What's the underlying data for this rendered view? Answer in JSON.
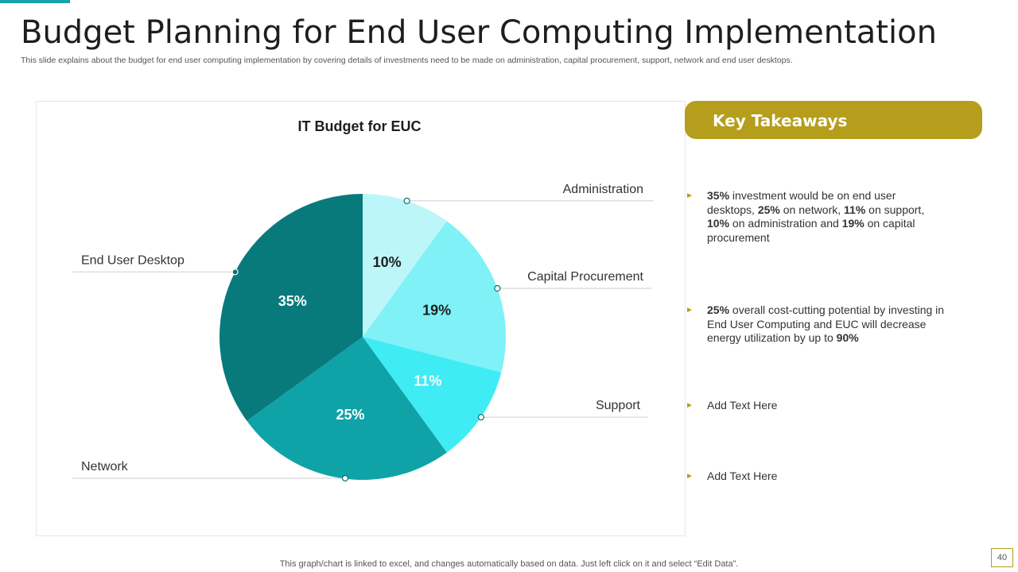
{
  "slide": {
    "title": "Budget Planning for End User Computing Implementation",
    "subtitle": "This slide explains about the budget for end user computing implementation by covering details of investments need to be made on administration, capital procurement, support, network and end user desktops.",
    "footer_note": "This graph/chart is linked to excel,  and changes automatically based on data. Just left click on it and select “Edit Data”.",
    "page_number": "40"
  },
  "takeaways": {
    "header": "Key Takeaways",
    "bullets": [
      {
        "parts": [
          {
            "t": "35%",
            "b": true
          },
          {
            "t": " investment would be on end user desktops, ",
            "b": false
          },
          {
            "t": "25%",
            "b": true
          },
          {
            "t": " on network, ",
            "b": false
          },
          {
            "t": "11%",
            "b": true
          },
          {
            "t": " on support, ",
            "b": false
          },
          {
            "t": "10%",
            "b": true
          },
          {
            "t": " on administration and ",
            "b": false
          },
          {
            "t": "19%",
            "b": true
          },
          {
            "t": " on  capital procurement",
            "b": false
          }
        ]
      },
      {
        "parts": [
          {
            "t": "25%",
            "b": true
          },
          {
            "t": " overall cost-cutting potential by investing in End User Computing and EUC will decrease energy utilization by up to ",
            "b": false
          },
          {
            "t": "90%",
            "b": true
          }
        ]
      },
      {
        "parts": [
          {
            "t": "Add Text Here",
            "b": false
          }
        ]
      },
      {
        "parts": [
          {
            "t": "Add Text Here",
            "b": false
          }
        ]
      }
    ]
  },
  "colors": {
    "accent": "#14a3a8",
    "gold": "#b59e1c"
  },
  "chart_data": {
    "type": "pie",
    "title": "IT Budget for EUC",
    "slices": [
      {
        "label": "Administration",
        "value": 10,
        "display": "10%",
        "color": "#bdf6f8",
        "text_color": "#1e1e1e"
      },
      {
        "label": "Capital Procurement",
        "value": 19,
        "display": "19%",
        "color": "#7ff1f7",
        "text_color": "#1e1e1e"
      },
      {
        "label": "Support",
        "value": 11,
        "display": "11%",
        "color": "#3fecf4",
        "text_color": "#ffffff"
      },
      {
        "label": "Network",
        "value": 25,
        "display": "25%",
        "color": "#0fa3a8",
        "text_color": "#ffffff"
      },
      {
        "label": "End User Desktop",
        "value": 35,
        "display": "35%",
        "color": "#087a7c",
        "text_color": "#ffffff"
      }
    ]
  }
}
